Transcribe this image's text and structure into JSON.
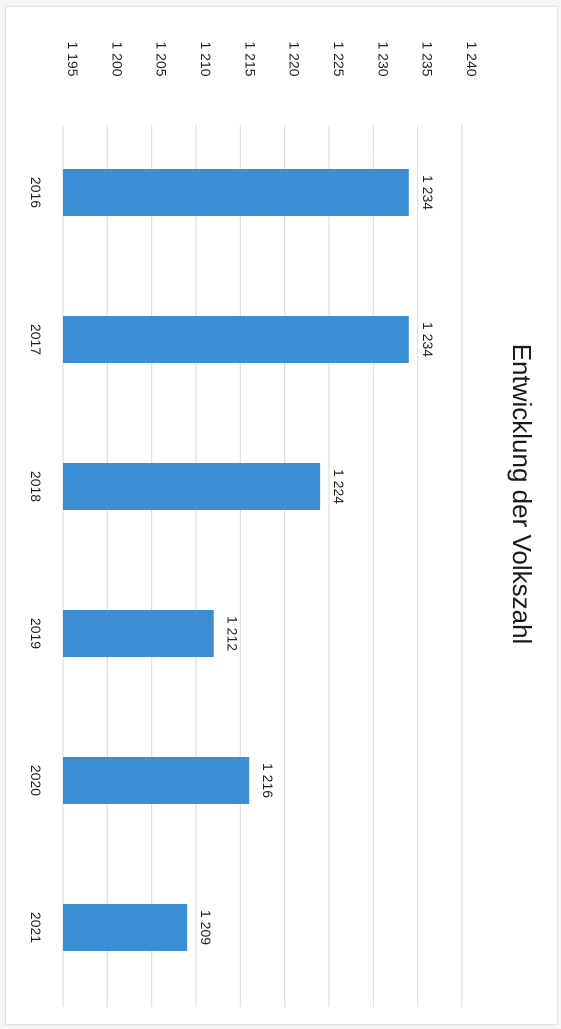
{
  "chart_data": {
    "type": "bar",
    "title": "Entwicklung der Volkszahl",
    "xlabel": "",
    "ylabel": "",
    "categories": [
      "2016",
      "2017",
      "2018",
      "2019",
      "2020",
      "2021"
    ],
    "values": [
      1234,
      1234,
      1224,
      1212,
      1216,
      1209
    ],
    "value_labels": [
      "1 234",
      "1 234",
      "1 224",
      "1 212",
      "1 216",
      "1 209"
    ],
    "ylim": [
      1195,
      1240
    ],
    "yticks": [
      1195,
      1200,
      1205,
      1210,
      1215,
      1220,
      1225,
      1230,
      1235,
      1240
    ],
    "ytick_labels": [
      "1 195",
      "1 200",
      "1 205",
      "1 210",
      "1 215",
      "1 220",
      "1 225",
      "1 230",
      "1 235",
      "1 240"
    ],
    "grid": true,
    "orientation": "rotated-90-clockwise",
    "colors": {
      "bar": "#3b8ed4",
      "grid": "#d9d9d9",
      "text": "#222222"
    }
  }
}
